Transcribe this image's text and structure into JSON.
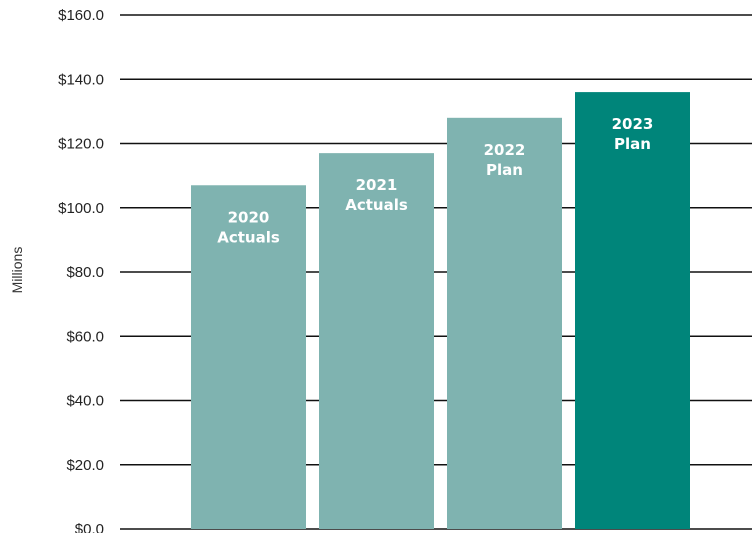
{
  "chart_data": {
    "type": "bar",
    "title": "",
    "xlabel": "",
    "ylabel": "Millions",
    "ylim": [
      0,
      160
    ],
    "yticks": [
      "$0.0",
      "$20.0",
      "$40.0",
      "$60.0",
      "$80.0",
      "$100.0",
      "$120.0",
      "$140.0",
      "$160.0"
    ],
    "grid": true,
    "legend": "none",
    "bars": [
      {
        "label_line1": "2020",
        "label_line2": "Actuals",
        "value": 107,
        "color": "#7fb3b0"
      },
      {
        "label_line1": "2021",
        "label_line2": "Actuals",
        "value": 117,
        "color": "#7fb3b0"
      },
      {
        "label_line1": "2022",
        "label_line2": "Plan",
        "value": 128,
        "color": "#7fb3b0"
      },
      {
        "label_line1": "2023",
        "label_line2": "Plan",
        "value": 136,
        "color": "#00857a"
      }
    ]
  }
}
